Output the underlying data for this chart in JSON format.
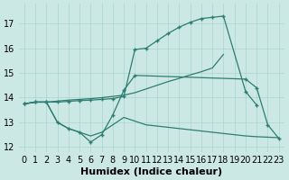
{
  "bg_color": "#cce8e4",
  "line_color": "#2e7d72",
  "grid_color": "#aad4ce",
  "xlabel": "Humidex (Indice chaleur)",
  "xlabel_fontsize": 8,
  "tick_fontsize": 7,
  "ylim": [
    11.8,
    17.8
  ],
  "xlim": [
    -0.5,
    23.5
  ],
  "yticks": [
    12,
    13,
    14,
    15,
    16,
    17
  ],
  "xticks": [
    0,
    1,
    2,
    3,
    4,
    5,
    6,
    7,
    8,
    9,
    10,
    11,
    12,
    13,
    14,
    15,
    16,
    17,
    18,
    19,
    20,
    21,
    22,
    23
  ],
  "top_line_x": [
    0,
    1,
    2,
    3,
    4,
    5,
    6,
    7,
    8,
    9,
    10,
    11,
    12,
    13,
    14,
    15,
    16,
    17,
    18,
    20,
    21
  ],
  "top_line_y": [
    13.75,
    13.82,
    13.82,
    13.82,
    13.85,
    13.88,
    13.9,
    13.93,
    13.96,
    14.05,
    15.95,
    16.0,
    16.3,
    16.6,
    16.85,
    17.05,
    17.2,
    17.25,
    17.3,
    14.25,
    13.7
  ],
  "upper_env_x": [
    0,
    1,
    2,
    3,
    4,
    5,
    6,
    7,
    8,
    9,
    10,
    11,
    12,
    13,
    14,
    15,
    16,
    17,
    18
  ],
  "upper_env_y": [
    13.75,
    13.82,
    13.82,
    13.86,
    13.9,
    13.93,
    13.96,
    14.0,
    14.05,
    14.1,
    14.2,
    14.35,
    14.5,
    14.65,
    14.78,
    14.92,
    15.05,
    15.2,
    15.75
  ],
  "lower_env_x": [
    0,
    1,
    2,
    3,
    4,
    5,
    6,
    7,
    8,
    9,
    10,
    11,
    12,
    13,
    14,
    15,
    16,
    17,
    18,
    19,
    20,
    21,
    22,
    23
  ],
  "lower_env_y": [
    13.75,
    13.82,
    13.82,
    13.0,
    12.75,
    12.6,
    12.45,
    12.6,
    12.9,
    13.2,
    13.05,
    12.9,
    12.85,
    12.8,
    12.75,
    12.7,
    12.65,
    12.6,
    12.55,
    12.5,
    12.45,
    12.42,
    12.4,
    12.38
  ],
  "bot_line_x": [
    0,
    1,
    2,
    3,
    4,
    5,
    6,
    7,
    8,
    9,
    10,
    20,
    21,
    22,
    23
  ],
  "bot_line_y": [
    13.75,
    13.82,
    13.82,
    13.0,
    12.75,
    12.6,
    12.2,
    12.5,
    13.3,
    14.3,
    14.9,
    14.75,
    14.4,
    12.9,
    12.35
  ]
}
